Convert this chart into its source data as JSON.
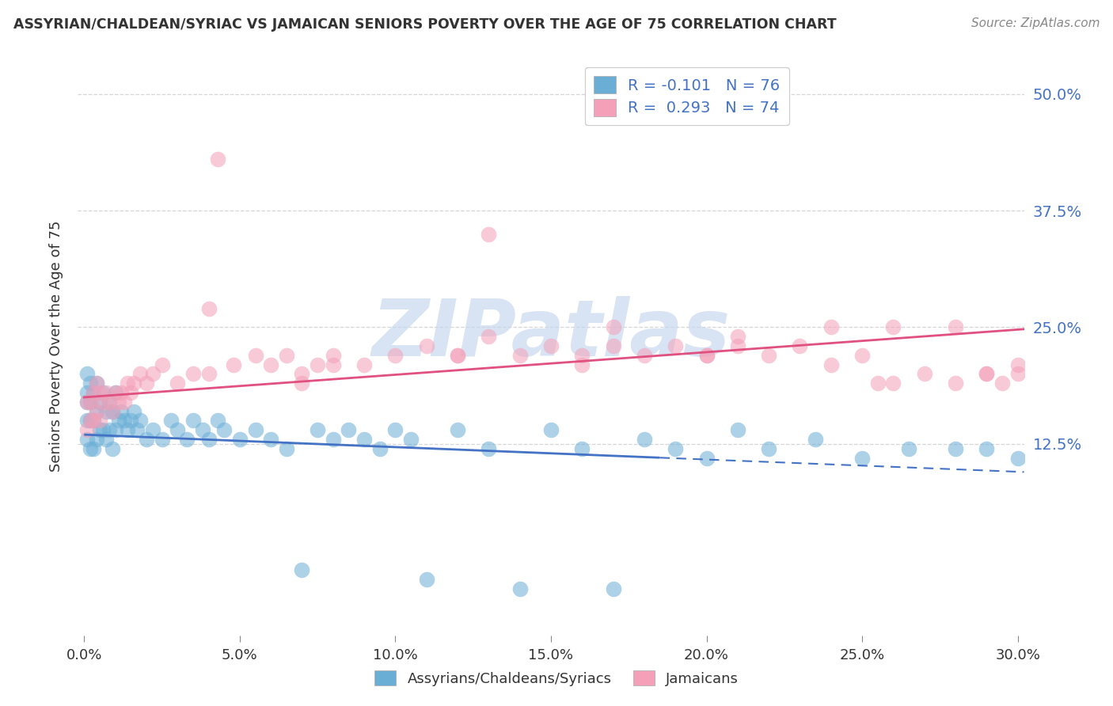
{
  "title": "ASSYRIAN/CHALDEAN/SYRIAC VS JAMAICAN SENIORS POVERTY OVER THE AGE OF 75 CORRELATION CHART",
  "source_text": "Source: ZipAtlas.com",
  "ylabel": "Seniors Poverty Over the Age of 75",
  "xlabel_ticks": [
    "0.0%",
    "5.0%",
    "10.0%",
    "15.0%",
    "20.0%",
    "25.0%",
    "30.0%"
  ],
  "xlabel_vals": [
    0.0,
    0.05,
    0.1,
    0.15,
    0.2,
    0.25,
    0.3
  ],
  "ylabel_ticks": [
    "12.5%",
    "25.0%",
    "37.5%",
    "50.0%"
  ],
  "ylabel_vals": [
    0.125,
    0.25,
    0.375,
    0.5
  ],
  "xlim": [
    -0.002,
    0.302
  ],
  "ylim": [
    -0.08,
    0.54
  ],
  "legend_labels_bottom": [
    "Assyrians/Chaldeans/Syriacs",
    "Jamaicans"
  ],
  "blue_scatter_color": "#6aaed6",
  "pink_scatter_color": "#f4a0b8",
  "blue_line_color": "#4472c4",
  "pink_line_color": "#e05080",
  "watermark_color": "#c8d8ee",
  "watermark_text": "ZIPatlas",
  "r_blue": -0.101,
  "n_blue": 76,
  "r_pink": 0.293,
  "n_pink": 74,
  "blue_line_solid_end": 0.185,
  "blue_line_start_y": 0.135,
  "blue_line_end_y": 0.095,
  "pink_line_start_y": 0.175,
  "pink_line_end_y": 0.248,
  "grid_color": "#bbbbbb",
  "grid_style": "--",
  "scatter_size": 200,
  "scatter_alpha": 0.55,
  "scatter_linewidth": 1.2,
  "blue_scatter_x": [
    0.001,
    0.001,
    0.001,
    0.001,
    0.001,
    0.002,
    0.002,
    0.002,
    0.002,
    0.003,
    0.003,
    0.003,
    0.004,
    0.004,
    0.004,
    0.005,
    0.005,
    0.006,
    0.006,
    0.007,
    0.007,
    0.008,
    0.008,
    0.009,
    0.009,
    0.01,
    0.01,
    0.011,
    0.012,
    0.013,
    0.014,
    0.015,
    0.016,
    0.017,
    0.018,
    0.02,
    0.022,
    0.025,
    0.028,
    0.03,
    0.033,
    0.035,
    0.038,
    0.04,
    0.043,
    0.045,
    0.05,
    0.055,
    0.06,
    0.065,
    0.07,
    0.075,
    0.08,
    0.085,
    0.09,
    0.095,
    0.1,
    0.105,
    0.11,
    0.12,
    0.13,
    0.14,
    0.15,
    0.16,
    0.17,
    0.18,
    0.19,
    0.2,
    0.21,
    0.22,
    0.235,
    0.25,
    0.265,
    0.28,
    0.29,
    0.3
  ],
  "blue_scatter_y": [
    0.2,
    0.18,
    0.17,
    0.15,
    0.13,
    0.19,
    0.17,
    0.15,
    0.12,
    0.18,
    0.15,
    0.12,
    0.19,
    0.16,
    0.13,
    0.17,
    0.14,
    0.18,
    0.14,
    0.16,
    0.13,
    0.17,
    0.14,
    0.16,
    0.12,
    0.18,
    0.14,
    0.15,
    0.16,
    0.15,
    0.14,
    0.15,
    0.16,
    0.14,
    0.15,
    0.13,
    0.14,
    0.13,
    0.15,
    0.14,
    0.13,
    0.15,
    0.14,
    0.13,
    0.15,
    0.14,
    0.13,
    0.14,
    0.13,
    0.12,
    -0.01,
    0.14,
    0.13,
    0.14,
    0.13,
    0.12,
    0.14,
    0.13,
    -0.02,
    0.14,
    0.12,
    -0.03,
    0.14,
    0.12,
    -0.03,
    0.13,
    0.12,
    0.11,
    0.14,
    0.12,
    0.13,
    0.11,
    0.12,
    0.12,
    0.12,
    0.11
  ],
  "pink_scatter_x": [
    0.001,
    0.001,
    0.002,
    0.002,
    0.003,
    0.003,
    0.004,
    0.004,
    0.005,
    0.005,
    0.006,
    0.007,
    0.008,
    0.009,
    0.01,
    0.011,
    0.012,
    0.013,
    0.014,
    0.015,
    0.016,
    0.018,
    0.02,
    0.022,
    0.025,
    0.03,
    0.035,
    0.04,
    0.043,
    0.048,
    0.055,
    0.06,
    0.065,
    0.07,
    0.075,
    0.08,
    0.09,
    0.1,
    0.11,
    0.12,
    0.13,
    0.14,
    0.15,
    0.16,
    0.17,
    0.18,
    0.19,
    0.2,
    0.21,
    0.22,
    0.23,
    0.24,
    0.25,
    0.255,
    0.26,
    0.27,
    0.28,
    0.29,
    0.295,
    0.3,
    0.04,
    0.08,
    0.12,
    0.16,
    0.2,
    0.24,
    0.28,
    0.3,
    0.07,
    0.13,
    0.17,
    0.21,
    0.26,
    0.29
  ],
  "pink_scatter_y": [
    0.17,
    0.14,
    0.17,
    0.15,
    0.18,
    0.15,
    0.19,
    0.16,
    0.18,
    0.15,
    0.17,
    0.18,
    0.17,
    0.16,
    0.18,
    0.17,
    0.18,
    0.17,
    0.19,
    0.18,
    0.19,
    0.2,
    0.19,
    0.2,
    0.21,
    0.19,
    0.2,
    0.27,
    0.43,
    0.21,
    0.22,
    0.21,
    0.22,
    0.2,
    0.21,
    0.22,
    0.21,
    0.22,
    0.23,
    0.22,
    0.35,
    0.22,
    0.23,
    0.22,
    0.23,
    0.22,
    0.23,
    0.22,
    0.23,
    0.22,
    0.23,
    0.25,
    0.22,
    0.19,
    0.19,
    0.2,
    0.19,
    0.2,
    0.19,
    0.2,
    0.2,
    0.21,
    0.22,
    0.21,
    0.22,
    0.21,
    0.25,
    0.21,
    0.19,
    0.24,
    0.25,
    0.24,
    0.25,
    0.2
  ]
}
